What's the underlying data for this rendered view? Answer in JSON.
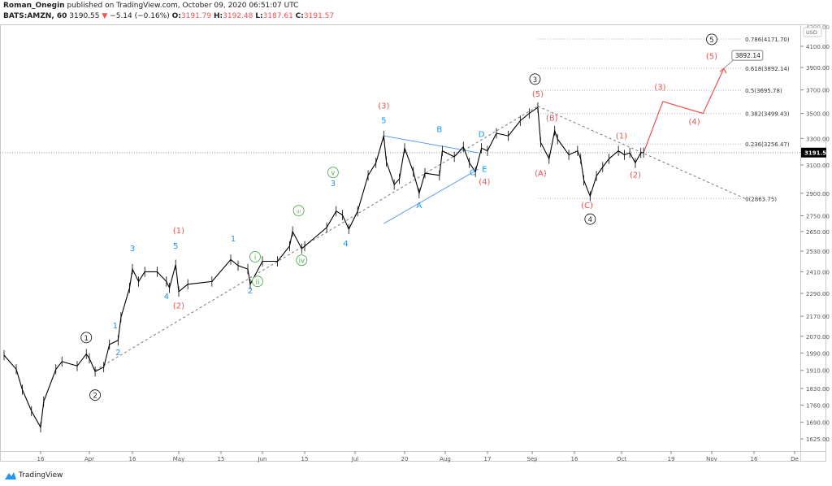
{
  "header": {
    "author": "Roman_Onegin",
    "published": "published on TradingView.com, October 09, 2020 06:51:07 UTC",
    "symbol": "BATS:AMZN, 60",
    "last": "3190.55",
    "change": "−5.14 (−0.16%)",
    "open_label": "O:",
    "open": "3191.79",
    "high_label": "H:",
    "high": "3192.48",
    "low_label": "L:",
    "low": "3187.61",
    "close_label": "C:",
    "close": "3191.57"
  },
  "brand": "TradingView",
  "colors": {
    "price": "#000000",
    "red": "#ef5350",
    "blue": "#2196f3",
    "green": "#4caf50",
    "grey": "#787b86"
  },
  "chart_data": {
    "type": "line",
    "y_scale": "log",
    "currency": "USD",
    "ylim": [
      1600,
      4250
    ],
    "y_ticks": [
      4100,
      3900,
      3700,
      3500,
      3300,
      3100,
      2900,
      2750,
      2650,
      2530,
      2410,
      2290,
      2170,
      2070,
      1990,
      1910,
      1830,
      1760,
      1690,
      1625
    ],
    "y_tick_labels": [
      "4100.00",
      "3900.00",
      "3700.00",
      "3500.00",
      "3300.00",
      "3100.00",
      "2900.00",
      "2750.00",
      "2650.00",
      "2530.00",
      "2410.00",
      "2290.00",
      "2170.00",
      "2070.00",
      "1990.00",
      "1910.00",
      "1830.00",
      "1760.00",
      "1690.00",
      "1625.00"
    ],
    "top_tick_label": "4200.00",
    "x_ticks": [
      {
        "date": "2020-03-16",
        "label": "16"
      },
      {
        "date": "2020-04-01",
        "label": "Apr"
      },
      {
        "date": "2020-04-16",
        "label": "16"
      },
      {
        "date": "2020-05-01",
        "label": "May"
      },
      {
        "date": "2020-05-15",
        "label": "15"
      },
      {
        "date": "2020-06-01",
        "label": "Jun"
      },
      {
        "date": "2020-06-15",
        "label": "15"
      },
      {
        "date": "2020-07-01",
        "label": "Jul"
      },
      {
        "date": "2020-07-20",
        "label": "20"
      },
      {
        "date": "2020-08-03",
        "label": "Aug"
      },
      {
        "date": "2020-08-17",
        "label": "17"
      },
      {
        "date": "2020-09-01",
        "label": "Sep"
      },
      {
        "date": "2020-09-16",
        "label": "16"
      },
      {
        "date": "2020-10-01",
        "label": "Oct"
      },
      {
        "date": "2020-10-19",
        "label": "19"
      },
      {
        "date": "2020-11-02",
        "label": "Nov"
      },
      {
        "date": "2020-11-16",
        "label": "16"
      },
      {
        "date": "2020-12-01",
        "label": "De"
      }
    ],
    "current_price": 3191.57,
    "current_price_label": "3191.57",
    "price": [
      [
        "2020-03-04",
        1980
      ],
      [
        "2020-03-08",
        1915
      ],
      [
        "2020-03-10",
        1825
      ],
      [
        "2020-03-13",
        1735
      ],
      [
        "2020-03-16",
        1670
      ],
      [
        "2020-03-17",
        1775
      ],
      [
        "2020-03-21",
        1915
      ],
      [
        "2020-03-23",
        1950
      ],
      [
        "2020-03-28",
        1930
      ],
      [
        "2020-03-31",
        1985
      ],
      [
        "2020-04-01",
        1965
      ],
      [
        "2020-04-03",
        1905
      ],
      [
        "2020-04-06",
        1925
      ],
      [
        "2020-04-08",
        2030
      ],
      [
        "2020-04-11",
        2050
      ],
      [
        "2020-04-12",
        2165
      ],
      [
        "2020-04-15",
        2320
      ],
      [
        "2020-04-16",
        2425
      ],
      [
        "2020-04-18",
        2355
      ],
      [
        "2020-04-20",
        2410
      ],
      [
        "2020-04-24",
        2410
      ],
      [
        "2020-04-27",
        2355
      ],
      [
        "2020-04-28",
        2320
      ],
      [
        "2020-04-30",
        2450
      ],
      [
        "2020-05-01",
        2300
      ],
      [
        "2020-05-04",
        2340
      ],
      [
        "2020-05-12",
        2355
      ],
      [
        "2020-05-19",
        2480
      ],
      [
        "2020-05-22",
        2445
      ],
      [
        "2020-05-26",
        2425
      ],
      [
        "2020-05-27",
        2340
      ],
      [
        "2020-06-01",
        2470
      ],
      [
        "2020-06-06",
        2470
      ],
      [
        "2020-06-10",
        2560
      ],
      [
        "2020-06-11",
        2650
      ],
      [
        "2020-06-14",
        2545
      ],
      [
        "2020-06-15",
        2560
      ],
      [
        "2020-06-22",
        2675
      ],
      [
        "2020-06-25",
        2780
      ],
      [
        "2020-06-27",
        2755
      ],
      [
        "2020-06-29",
        2665
      ],
      [
        "2020-07-02",
        2780
      ],
      [
        "2020-07-06",
        3025
      ],
      [
        "2020-07-09",
        3115
      ],
      [
        "2020-07-12",
        3320
      ],
      [
        "2020-07-13",
        3125
      ],
      [
        "2020-07-16",
        2960
      ],
      [
        "2020-07-18",
        3000
      ],
      [
        "2020-07-20",
        3225
      ],
      [
        "2020-07-23",
        3050
      ],
      [
        "2020-07-25",
        2900
      ],
      [
        "2020-07-27",
        3040
      ],
      [
        "2020-08-01",
        3025
      ],
      [
        "2020-08-02",
        3205
      ],
      [
        "2020-08-06",
        3160
      ],
      [
        "2020-08-09",
        3235
      ],
      [
        "2020-08-11",
        3115
      ],
      [
        "2020-08-13",
        3050
      ],
      [
        "2020-08-15",
        3225
      ],
      [
        "2020-08-17",
        3205
      ],
      [
        "2020-08-20",
        3340
      ],
      [
        "2020-08-24",
        3320
      ],
      [
        "2020-08-28",
        3440
      ],
      [
        "2020-08-31",
        3500
      ],
      [
        "2020-09-03",
        3550
      ],
      [
        "2020-09-04",
        3270
      ],
      [
        "2020-09-07",
        3145
      ],
      [
        "2020-09-09",
        3360
      ],
      [
        "2020-09-10",
        3295
      ],
      [
        "2020-09-14",
        3175
      ],
      [
        "2020-09-17",
        3205
      ],
      [
        "2020-09-18",
        3145
      ],
      [
        "2020-09-19",
        2990
      ],
      [
        "2020-09-21",
        2880
      ],
      [
        "2020-09-23",
        3020
      ],
      [
        "2020-09-25",
        3085
      ],
      [
        "2020-09-27",
        3145
      ],
      [
        "2020-09-30",
        3205
      ],
      [
        "2020-10-02",
        3175
      ],
      [
        "2020-10-04",
        3190
      ],
      [
        "2020-10-06",
        3115
      ],
      [
        "2020-10-08",
        3190
      ],
      [
        "2020-10-09",
        3192
      ]
    ],
    "fib_levels": [
      {
        "ratio": "0.786",
        "price": 4171.7,
        "label": "0.786(4171.70)"
      },
      {
        "ratio": "0.618",
        "price": 3892.14,
        "label": "0.618(3892.14)"
      },
      {
        "ratio": "0.5",
        "price": 3695.78,
        "label": "0.5(3695.78)"
      },
      {
        "ratio": "0.382",
        "price": 3499.43,
        "label": "0.382(3499.43)"
      },
      {
        "ratio": "0.236",
        "price": 3256.47,
        "label": "0.236(3256.47)"
      },
      {
        "ratio": "0",
        "price": 2863.75,
        "label": "0(2863.75)"
      }
    ],
    "fib_range": [
      "2020-09-03",
      "2020-11-12"
    ],
    "projection": [
      [
        "2020-10-09",
        3192
      ],
      [
        "2020-10-16",
        3600
      ],
      [
        "2020-10-30",
        3500
      ],
      [
        "2020-11-06",
        3892
      ]
    ],
    "target_callout": "3892.14",
    "trendlines": [
      {
        "style": "dashed",
        "color": "grey",
        "points": [
          [
            "2020-04-03",
            1910
          ],
          [
            "2020-09-03",
            3560
          ]
        ]
      },
      {
        "style": "dashed",
        "color": "grey",
        "points": [
          [
            "2020-09-03",
            3560
          ],
          [
            "2020-11-13",
            2864
          ]
        ]
      },
      {
        "style": "solid",
        "color": "blue",
        "points": [
          [
            "2020-07-12",
            3320
          ],
          [
            "2020-08-14",
            3190
          ]
        ]
      },
      {
        "style": "solid",
        "color": "blue",
        "points": [
          [
            "2020-07-12",
            2700
          ],
          [
            "2020-08-14",
            3070
          ]
        ]
      }
    ],
    "wave_labels": [
      {
        "text": "1",
        "color": "black",
        "circled": true,
        "date": "2020-03-31",
        "price": 2050
      },
      {
        "text": "2",
        "color": "black",
        "circled": true,
        "date": "2020-04-03",
        "price": 1790
      },
      {
        "text": "3",
        "color": "black",
        "circled": true,
        "date": "2020-09-02",
        "price": 3770
      },
      {
        "text": "4",
        "color": "black",
        "circled": true,
        "date": "2020-09-21",
        "price": 2710
      },
      {
        "text": "5",
        "color": "black",
        "circled": true,
        "date": "2020-11-02",
        "price": 4140
      },
      {
        "text": "(1)",
        "color": "red",
        "date": "2020-05-01",
        "price": 2640
      },
      {
        "text": "(2)",
        "color": "red",
        "date": "2020-05-01",
        "price": 2210
      },
      {
        "text": "(3)",
        "color": "red",
        "date": "2020-07-12",
        "price": 3540
      },
      {
        "text": "(4)",
        "color": "red",
        "date": "2020-08-16",
        "price": 2960
      },
      {
        "text": "(5)",
        "color": "red",
        "date": "2020-09-03",
        "price": 3640
      },
      {
        "text": "(A)",
        "color": "red",
        "date": "2020-09-04",
        "price": 3020
      },
      {
        "text": "(B)",
        "color": "red",
        "date": "2020-09-08",
        "price": 3440
      },
      {
        "text": "(C)",
        "color": "red",
        "date": "2020-09-20",
        "price": 2800
      },
      {
        "text": "(1)",
        "color": "red",
        "date": "2020-10-01",
        "price": 3300
      },
      {
        "text": "(2)",
        "color": "red",
        "date": "2020-10-06",
        "price": 3010
      },
      {
        "text": "(3)",
        "color": "red",
        "date": "2020-10-15",
        "price": 3700
      },
      {
        "text": "(4)",
        "color": "red",
        "date": "2020-10-27",
        "price": 3410
      },
      {
        "text": "(5)",
        "color": "red",
        "date": "2020-11-02",
        "price": 3980
      },
      {
        "text": "1",
        "color": "blue",
        "date": "2020-04-10",
        "price": 2110
      },
      {
        "text": "2",
        "color": "blue",
        "date": "2020-04-11",
        "price": 1980
      },
      {
        "text": "3",
        "color": "blue",
        "date": "2020-04-16",
        "price": 2530
      },
      {
        "text": "4",
        "color": "blue",
        "date": "2020-04-27",
        "price": 2260
      },
      {
        "text": "5",
        "color": "blue",
        "date": "2020-04-30",
        "price": 2545
      },
      {
        "text": "1",
        "color": "blue",
        "date": "2020-05-20",
        "price": 2590
      },
      {
        "text": "2",
        "color": "blue",
        "date": "2020-05-27",
        "price": 2290
      },
      {
        "text": "3",
        "color": "blue",
        "date": "2020-06-24",
        "price": 2950
      },
      {
        "text": "4",
        "color": "blue",
        "date": "2020-06-28",
        "price": 2560
      },
      {
        "text": "5",
        "color": "blue",
        "date": "2020-07-12",
        "price": 3420
      },
      {
        "text": "A",
        "color": "blue",
        "date": "2020-07-25",
        "price": 2800
      },
      {
        "text": "B",
        "color": "blue",
        "date": "2020-08-01",
        "price": 3350
      },
      {
        "text": "C",
        "color": "blue",
        "date": "2020-08-12",
        "price": 3025
      },
      {
        "text": "D",
        "color": "blue",
        "date": "2020-08-15",
        "price": 3310
      },
      {
        "text": "E",
        "color": "blue",
        "date": "2020-08-16",
        "price": 3050
      },
      {
        "text": "i",
        "color": "green",
        "circled": true,
        "date": "2020-05-29",
        "price": 2480
      },
      {
        "text": "ii",
        "color": "green",
        "circled": true,
        "date": "2020-05-30",
        "price": 2340
      },
      {
        "text": "iii",
        "color": "green",
        "circled": true,
        "date": "2020-06-13",
        "price": 2765
      },
      {
        "text": "iv",
        "color": "green",
        "circled": true,
        "date": "2020-06-14",
        "price": 2460
      },
      {
        "text": "v",
        "color": "green",
        "circled": true,
        "date": "2020-06-24",
        "price": 3025
      }
    ]
  }
}
